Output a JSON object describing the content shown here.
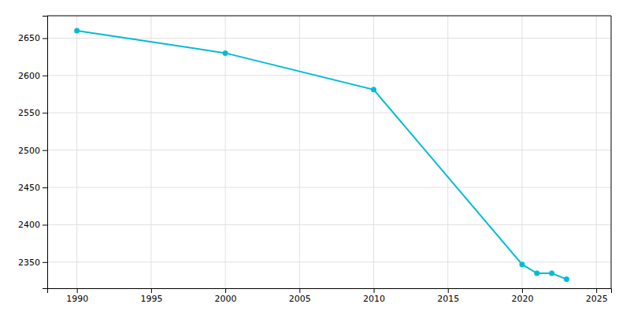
{
  "chart_data": {
    "type": "line",
    "x": [
      1990,
      2000,
      2010,
      2020,
      2021,
      2022,
      2023
    ],
    "values": [
      2660,
      2630,
      2581,
      2347,
      2335,
      2335,
      2327
    ],
    "color": "#00bcd4",
    "marker": "circle",
    "xlim": [
      1988,
      2026
    ],
    "ylim": [
      2315,
      2680
    ],
    "xticks": [
      1990,
      1995,
      2000,
      2005,
      2010,
      2015,
      2020,
      2025
    ],
    "yticks": [
      2350,
      2400,
      2450,
      2500,
      2550,
      2600,
      2650
    ],
    "grid": true
  }
}
